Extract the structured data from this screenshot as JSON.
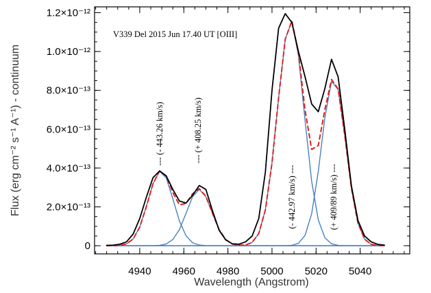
{
  "chart_data": {
    "type": "line",
    "title": "V339 Del 2015 Jun 17.40 UT [OIII]",
    "x_label": "Wavelength (Angstrom)",
    "y_label": "Flux (erg cm⁻² s⁻¹ A⁻¹) - continuum",
    "annotations": [
      "--- (- 443.26 km/s)",
      "--- (+ 408.25 km/s)",
      "(- 442.97 km/s) ---",
      "(+ 409/89 km/s) ---"
    ],
    "xlim": [
      4919.5,
      5062.5
    ],
    "xticks": [
      4940,
      4960,
      4980,
      5000,
      5020,
      5040
    ],
    "ylim": [
      -4.2e-14,
      1.23e-12
    ],
    "yticks": [
      0,
      {
        "value": 2e-13,
        "label": "2.0×10⁻¹³"
      },
      {
        "value": 4e-13,
        "label": "4.0×10⁻¹³"
      },
      {
        "value": 6e-13,
        "label": "6.0×10⁻¹³"
      },
      {
        "value": 8e-13,
        "label": "8.0×10⁻¹³"
      },
      {
        "value": 1e-12,
        "label": "1.0×10⁻¹²"
      },
      {
        "value": 1.2e-12,
        "label": "1.2×10⁻¹²"
      }
    ],
    "x": [
      4925,
      4928,
      4931,
      4934,
      4937,
      4940,
      4943,
      4946,
      4949,
      4952,
      4955,
      4958,
      4961,
      4964,
      4967,
      4970,
      4973,
      4976,
      4979,
      4982,
      4985,
      4988,
      4991,
      4994,
      4997,
      5000,
      5003,
      5006,
      5009,
      5012,
      5015,
      5018,
      5021,
      5024,
      5027,
      5030,
      5033,
      5036,
      5039,
      5042,
      5045,
      5048,
      5051
    ],
    "series": [
      {
        "color": "#4a7fc1",
        "dash": false,
        "values": [
          0,
          3e-16,
          2e-15,
          9.5e-15,
          3.5e-14,
          9.6e-14,
          2.01e-13,
          3.19e-13,
          3.83e-13,
          3.5e-13,
          2.42e-13,
          1.27e-13,
          5.1e-14,
          1.5e-14,
          3.5e-15,
          6e-16,
          1e-16,
          0,
          0,
          0,
          0,
          0,
          0,
          0,
          0,
          0,
          0,
          0,
          0,
          0,
          0,
          0,
          0,
          0,
          0,
          0,
          0,
          0,
          0,
          0,
          0,
          0,
          0
        ]
      },
      {
        "color": "#4a7fc1",
        "dash": false,
        "values": [
          0,
          0,
          0,
          0,
          0,
          0,
          0,
          3e-16,
          2e-15,
          9e-15,
          3.2e-14,
          8.3e-14,
          1.67e-13,
          2.53e-13,
          2.9e-13,
          2.53e-13,
          1.67e-13,
          8.3e-14,
          3.2e-14,
          9e-15,
          2e-15,
          3e-16,
          0,
          0,
          0,
          0,
          0,
          0,
          0,
          0,
          0,
          0,
          0,
          0,
          0,
          0,
          0,
          0,
          0,
          0,
          0,
          0,
          0
        ]
      },
      {
        "color": "#4a7fc1",
        "dash": false,
        "values": [
          0,
          0,
          0,
          0,
          0,
          0,
          0,
          0,
          0,
          0,
          0,
          0,
          0,
          0,
          0,
          0,
          0,
          0,
          0,
          0,
          5e-16,
          3.4e-15,
          1.7e-14,
          6.3e-14,
          1.85e-13,
          4.26e-13,
          7.62e-13,
          1.063e-12,
          1.156e-12,
          9.79e-13,
          6.45e-13,
          3.31e-13,
          1.33e-13,
          4.1e-14,
          1e-14,
          1.9e-15,
          3e-16,
          0,
          0,
          0,
          0,
          0,
          0
        ]
      },
      {
        "color": "#4a7fc1",
        "dash": false,
        "values": [
          0,
          0,
          0,
          0,
          0,
          0,
          0,
          0,
          0,
          0,
          0,
          0,
          0,
          0,
          0,
          0,
          0,
          0,
          0,
          0,
          0,
          0,
          0,
          0,
          0,
          0,
          0,
          3e-16,
          2.2e-15,
          1.25e-14,
          5.3e-14,
          1.65e-13,
          3.83e-13,
          6.6e-13,
          8.46e-13,
          8.05e-13,
          5.69e-13,
          2.98e-13,
          1.16e-13,
          3.4e-14,
          7.2e-15,
          1.1e-15,
          1e-16
        ]
      },
      {
        "color": "#e0201b",
        "dash": true,
        "values": [
          0,
          3e-16,
          2e-15,
          9.5e-15,
          3.5e-14,
          9.6e-14,
          2.01e-13,
          3.19e-13,
          3.85e-13,
          3.59e-13,
          2.74e-13,
          2.1e-13,
          2.18e-13,
          2.68e-13,
          2.94e-13,
          2.54e-13,
          1.67e-13,
          8.3e-14,
          3.2e-14,
          9e-15,
          2.5e-15,
          3.7e-15,
          1.7e-14,
          6.3e-14,
          1.85e-13,
          4.26e-13,
          7.62e-13,
          1.063e-12,
          1.158e-12,
          9.92e-13,
          6.98e-13,
          4.96e-13,
          5.16e-13,
          7.01e-13,
          8.56e-13,
          8.07e-13,
          5.69e-13,
          2.98e-13,
          1.16e-13,
          3.4e-14,
          7.2e-15,
          1.1e-15,
          1e-16
        ]
      },
      {
        "color": "#000000",
        "dash": false,
        "values": [
          2e-15,
          3e-15,
          8e-15,
          2e-14,
          6e-14,
          1.4e-13,
          2.5e-13,
          3.5e-13,
          3.85e-13,
          3.6e-13,
          2.9e-13,
          2.3e-13,
          2.2e-13,
          2.6e-13,
          3.1e-13,
          2.9e-13,
          1.8e-13,
          8e-14,
          3e-14,
          1e-14,
          8e-15,
          2e-14,
          5e-14,
          1.4e-13,
          3.8e-13,
          8e-13,
          1.12e-12,
          1.195e-12,
          1.15e-12,
          1e-12,
          8.7e-13,
          7.3e-13,
          6.9e-13,
          8.1e-13,
          9.6e-13,
          8.7e-13,
          6e-13,
          3.1e-13,
          1.3e-13,
          5e-14,
          2e-14,
          7e-15,
          3e-15
        ]
      }
    ]
  }
}
